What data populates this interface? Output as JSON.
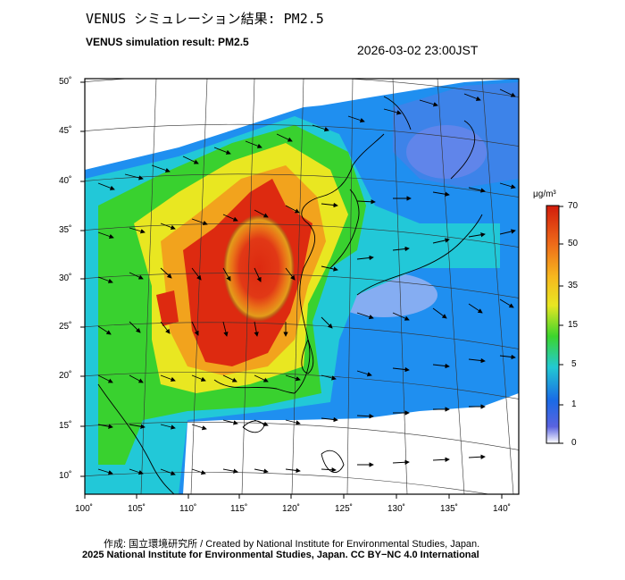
{
  "header": {
    "title_jp": "VENUS シミュレーション結果: PM2.5",
    "title_en": "VENUS simulation result: PM2.5",
    "timestamp": "2026-03-02 23:00JST"
  },
  "map": {
    "lat_ticks": [
      "50˚",
      "45˚",
      "40˚",
      "35˚",
      "30˚",
      "25˚",
      "20˚",
      "15˚",
      "10˚"
    ],
    "lon_ticks": [
      "100˚",
      "105˚",
      "110˚",
      "115˚",
      "120˚",
      "125˚",
      "130˚",
      "135˚",
      "140˚"
    ]
  },
  "legend": {
    "unit": "μg/m³",
    "labels": [
      "70",
      "50",
      "35",
      "15",
      "5",
      "1",
      "0"
    ],
    "colors": [
      "#dd2a10",
      "#f2a31d",
      "#e9e721",
      "#39d12f",
      "#22c8d8",
      "#1b6fe8",
      "#ffffff"
    ]
  },
  "footer": {
    "credit": "作成: 国立環境研究所 / Created by National Institute for Environmental Studies, Japan.",
    "copyright": "2025 National Institute for Environmental Studies, Japan. CC BY−NC 4.0 International"
  }
}
